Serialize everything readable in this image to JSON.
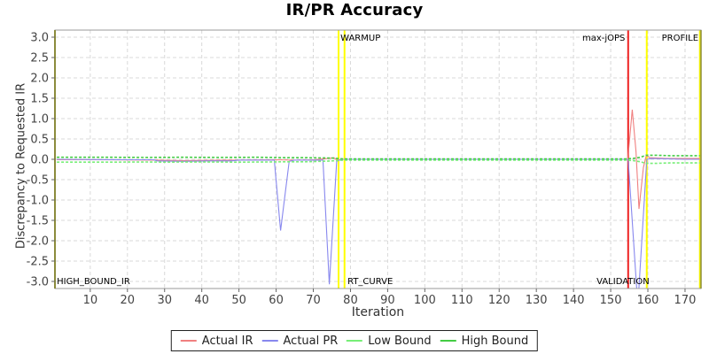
{
  "chart_data": {
    "type": "line",
    "title": "IR/PR Accuracy",
    "xlabel": "Iteration",
    "ylabel": "Discrepancy to Requested IR",
    "xlim": [
      0.5,
      174.3
    ],
    "ylim": [
      -3.0,
      3.0
    ],
    "x_ticks": [
      10,
      20,
      30,
      40,
      50,
      60,
      70,
      80,
      90,
      100,
      110,
      120,
      130,
      140,
      150,
      160,
      170
    ],
    "y_ticks": [
      3.0,
      2.5,
      2.0,
      1.5,
      1.0,
      0.5,
      0.0,
      -0.5,
      -1.0,
      -1.5,
      -2.0,
      -2.5,
      -3.0
    ],
    "grid": "dashed",
    "legend_position": "bottom",
    "series": [
      {
        "name": "Actual IR",
        "color": "#f08080",
        "style": "solid",
        "points": [
          [
            1,
            -0.01
          ],
          [
            10,
            -0.01
          ],
          [
            20,
            -0.015
          ],
          [
            28,
            -0.02
          ],
          [
            35,
            -0.03
          ],
          [
            40,
            -0.025
          ],
          [
            48,
            -0.02
          ],
          [
            55,
            -0.015
          ],
          [
            60,
            -0.01
          ],
          [
            65,
            -0.02
          ],
          [
            70,
            -0.01
          ],
          [
            74,
            0.02
          ],
          [
            75.5,
            0.04
          ],
          [
            76.5,
            -0.02
          ],
          [
            78,
            0
          ],
          [
            90,
            0
          ],
          [
            110,
            0
          ],
          [
            130,
            0
          ],
          [
            145,
            0
          ],
          [
            152,
            0
          ],
          [
            154.6,
            0
          ],
          [
            155.8,
            1.22
          ],
          [
            156.8,
            0.2
          ],
          [
            157.6,
            -1.22
          ],
          [
            158.8,
            -0.2
          ],
          [
            159.6,
            0.1
          ],
          [
            160.5,
            0.04
          ],
          [
            165,
            0.02
          ],
          [
            170,
            0.02
          ],
          [
            174,
            0.02
          ]
        ]
      },
      {
        "name": "Actual PR",
        "color": "#8888ee",
        "style": "solid",
        "points": [
          [
            1,
            0
          ],
          [
            20,
            -0.01
          ],
          [
            27,
            -0.01
          ],
          [
            28,
            -0.04
          ],
          [
            35,
            -0.05
          ],
          [
            42,
            -0.04
          ],
          [
            48,
            -0.04
          ],
          [
            50,
            -0.02
          ],
          [
            55,
            -0.02
          ],
          [
            59.5,
            -0.02
          ],
          [
            61.2,
            -1.75
          ],
          [
            63.5,
            -0.05
          ],
          [
            65,
            -0.02
          ],
          [
            72.6,
            -0.02
          ],
          [
            74.3,
            -3.07
          ],
          [
            76.3,
            -0.05
          ],
          [
            77.5,
            0
          ],
          [
            90,
            0
          ],
          [
            120,
            0
          ],
          [
            150,
            0
          ],
          [
            154.7,
            0
          ],
          [
            157.3,
            -3.6
          ],
          [
            159.7,
            0
          ],
          [
            161,
            0.02
          ],
          [
            170,
            0
          ],
          [
            174,
            0
          ]
        ]
      },
      {
        "name": "Low Bound",
        "color": "#77ee77",
        "style": "dashed",
        "points": [
          [
            1,
            -0.07
          ],
          [
            15,
            -0.07
          ],
          [
            25,
            -0.065
          ],
          [
            30,
            -0.07
          ],
          [
            40,
            -0.065
          ],
          [
            50,
            -0.07
          ],
          [
            58,
            -0.065
          ],
          [
            62,
            -0.06
          ],
          [
            68,
            -0.06
          ],
          [
            72,
            -0.05
          ],
          [
            75,
            -0.04
          ],
          [
            76.5,
            -0.03
          ],
          [
            78,
            -0.02
          ],
          [
            85,
            -0.02
          ],
          [
            100,
            -0.02
          ],
          [
            120,
            -0.02
          ],
          [
            140,
            -0.02
          ],
          [
            150,
            -0.02
          ],
          [
            154,
            -0.02
          ],
          [
            156,
            -0.03
          ],
          [
            158,
            -0.06
          ],
          [
            159.5,
            -0.1
          ],
          [
            162,
            -0.1
          ],
          [
            166,
            -0.09
          ],
          [
            170,
            -0.09
          ],
          [
            174,
            -0.09
          ]
        ]
      },
      {
        "name": "High Bound",
        "color": "#44cc44",
        "style": "dashed",
        "points": [
          [
            1,
            0.05
          ],
          [
            15,
            0.05
          ],
          [
            25,
            0.045
          ],
          [
            35,
            0.05
          ],
          [
            45,
            0.045
          ],
          [
            55,
            0.05
          ],
          [
            62,
            0.04
          ],
          [
            68,
            0.04
          ],
          [
            72,
            0.035
          ],
          [
            75,
            0.03
          ],
          [
            76.5,
            0.02
          ],
          [
            78,
            0.01
          ],
          [
            90,
            0.01
          ],
          [
            110,
            0.01
          ],
          [
            130,
            0.01
          ],
          [
            150,
            0.01
          ],
          [
            154,
            0.01
          ],
          [
            156,
            0.02
          ],
          [
            158,
            0.05
          ],
          [
            159.5,
            0.1
          ],
          [
            162,
            0.1
          ],
          [
            166,
            0.09
          ],
          [
            170,
            0.09
          ],
          [
            174,
            0.09
          ]
        ]
      }
    ],
    "vlines": [
      {
        "name": "warmup-start-line",
        "x": 76.8,
        "color": "#ffff00",
        "width": 2
      },
      {
        "name": "warmup-end-line",
        "x": 78.4,
        "color": "#ffff00",
        "width": 2
      },
      {
        "name": "max-jops-line",
        "x": 154.7,
        "color": "#ee2222",
        "width": 2
      },
      {
        "name": "validation-end-line",
        "x": 159.7,
        "color": "#ffff00",
        "width": 2
      },
      {
        "name": "profile-end-line",
        "x": 174.0,
        "color": "#eeee00",
        "width": 2
      }
    ],
    "annotations": [
      {
        "name": "warmup-label",
        "text": "WARMUP",
        "x": 77.3,
        "pos": "top",
        "anchor": "start"
      },
      {
        "name": "rt-curve-label",
        "text": "RT_CURVE",
        "x": 79.2,
        "pos": "bottom",
        "anchor": "start"
      },
      {
        "name": "high-bound-ir-label",
        "text": "HIGH_BOUND_IR",
        "x": 1.0,
        "pos": "bottom",
        "anchor": "start"
      },
      {
        "name": "max-jops-label",
        "text": "max-jOPS",
        "x": 153.9,
        "pos": "top",
        "anchor": "end"
      },
      {
        "name": "validation-label",
        "text": "VALIDATION",
        "x": 160.4,
        "pos": "bottom",
        "anchor": "end"
      },
      {
        "name": "profile-label",
        "text": "PROFILE",
        "x": 173.6,
        "pos": "top",
        "anchor": "end"
      }
    ],
    "colors": {
      "grid": "#d8d8d8",
      "plot_border": "#999999",
      "side_border": "#8b8b3c",
      "tick_text": "#444444",
      "annotation_text": "#000000"
    }
  }
}
